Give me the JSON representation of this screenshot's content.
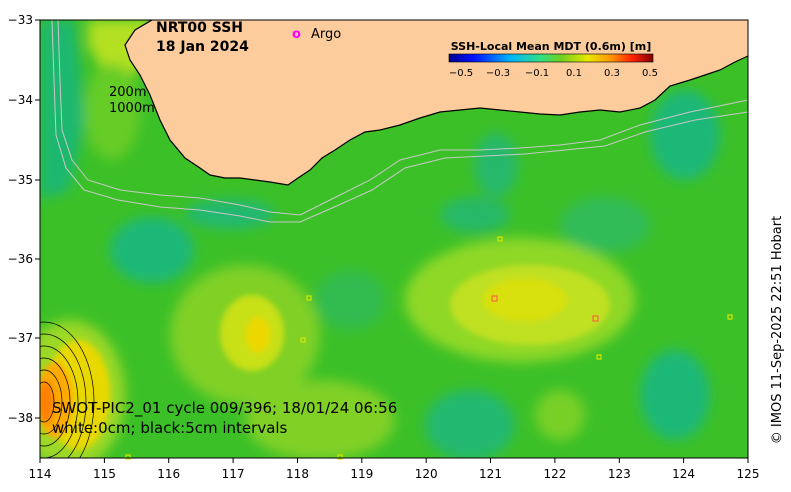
{
  "title": {
    "line1": "NRT00 SSH",
    "line2": "18 Jan 2024"
  },
  "argo_legend": {
    "symbol": "o",
    "label": "Argo",
    "color": "#ff00ff"
  },
  "colorbar": {
    "title": "SSH-Local Mean MDT (0.6m) [m]",
    "ticks": [
      "−0.5",
      "−0.3",
      "−0.1",
      "0.1",
      "0.3",
      "0.5"
    ]
  },
  "depth_labels": {
    "shallow": "200m",
    "deep": "1000m"
  },
  "swot": {
    "line1": "SWOT-PIC2_01 cycle 009/396; 18/01/24 06:56",
    "line2": "white:0cm; black:5cm intervals"
  },
  "credit": "© IMOS 11-Sep-2025 22:51 Hobart",
  "axes": {
    "x_ticks": [
      "114",
      "115",
      "116",
      "117",
      "118",
      "119",
      "120",
      "121",
      "122",
      "123",
      "124",
      "125"
    ],
    "y_ticks": [
      "−33",
      "−34",
      "−35",
      "−36",
      "−37",
      "−38"
    ]
  },
  "colors": {
    "land": "#fccc9c",
    "base_field": "#3cc028",
    "accent_argo": "#ff00ff"
  }
}
